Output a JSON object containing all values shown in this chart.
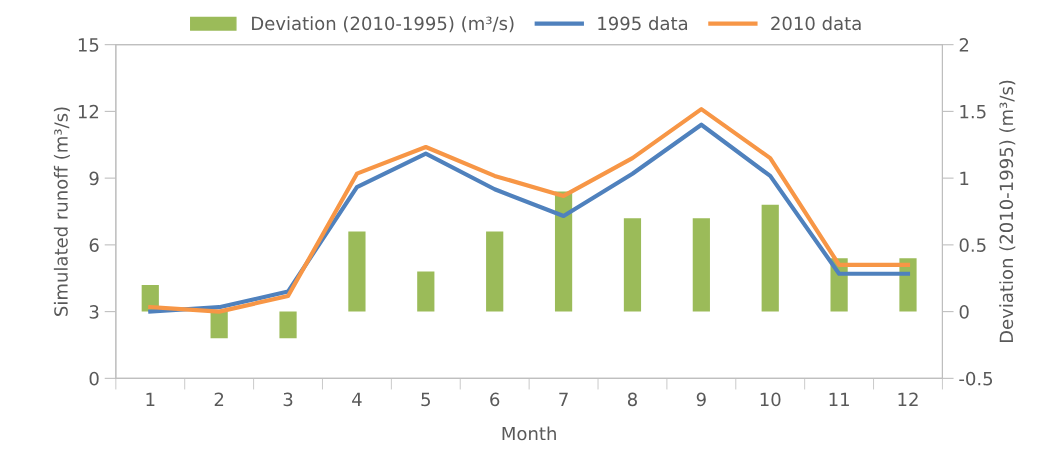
{
  "chart_data": {
    "type": "line",
    "xlabel": "Month",
    "ylabel": "Simulated runoff (m³/s)",
    "y2label": "Deviation (2010-1995) (m³/s)",
    "categories": [
      "1",
      "2",
      "3",
      "4",
      "5",
      "6",
      "7",
      "8",
      "9",
      "10",
      "11",
      "12"
    ],
    "series": [
      {
        "name": "Deviation (2010-1995) (m³/s)",
        "type": "bar",
        "axis": "y2",
        "color": "#9bbb59",
        "values": [
          0.2,
          -0.2,
          -0.2,
          0.6,
          0.3,
          0.6,
          0.9,
          0.7,
          0.7,
          0.8,
          0.4,
          0.4
        ]
      },
      {
        "name": "1995 data",
        "color": "#4f81bd",
        "values": [
          3.0,
          3.2,
          3.9,
          8.6,
          10.1,
          8.5,
          7.3,
          9.2,
          11.4,
          9.1,
          4.7,
          4.7
        ]
      },
      {
        "name": "2010 data",
        "color": "#f79646",
        "values": [
          3.2,
          3.0,
          3.7,
          9.2,
          10.4,
          9.1,
          8.2,
          9.9,
          12.1,
          9.9,
          5.1,
          5.1
        ]
      }
    ],
    "ylim": [
      0,
      15
    ],
    "yticks": [
      0,
      3,
      6,
      9,
      12,
      15
    ],
    "y2lim": [
      -0.5,
      2
    ],
    "y2ticks": [
      -0.5,
      0,
      0.5,
      1,
      1.5,
      2
    ],
    "grid": false,
    "legend": "top",
    "marker": "none",
    "line_style": "solid"
  }
}
